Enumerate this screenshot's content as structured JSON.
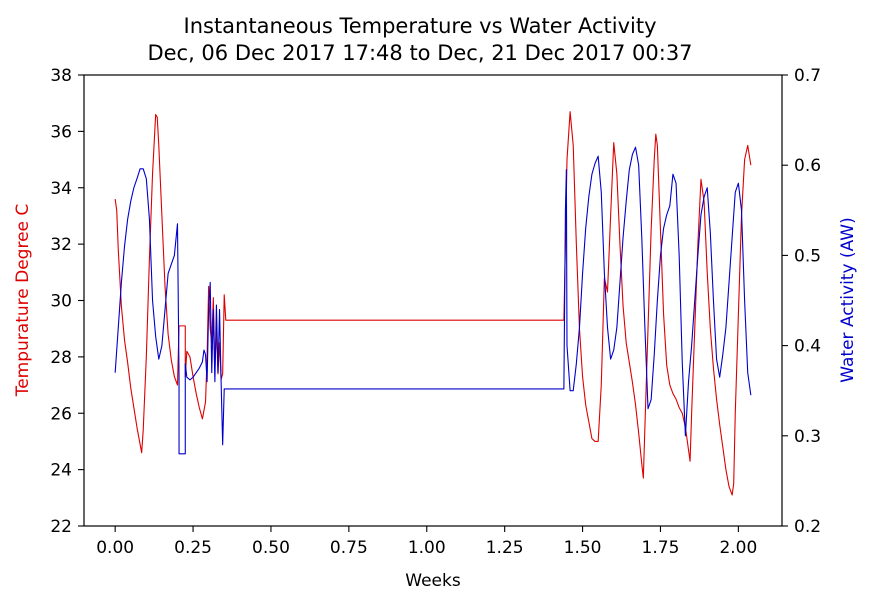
{
  "chart_data": {
    "type": "line",
    "title": "Instantaneous Temperature vs Water Activity",
    "subtitle": "Dec, 06 Dec 2017 17:48 to Dec, 21 Dec 2017 00:37",
    "xlabel": "Weeks",
    "xlim": [
      -0.1,
      2.14
    ],
    "xticks": [
      0.0,
      0.25,
      0.5,
      0.75,
      1.0,
      1.25,
      1.5,
      1.75,
      2.0
    ],
    "xtick_labels": [
      "0.00",
      "0.25",
      "0.50",
      "0.75",
      "1.00",
      "1.25",
      "1.50",
      "1.75",
      "2.00"
    ],
    "y_left": {
      "label": "Tempurature Degree C",
      "lim": [
        22,
        38
      ],
      "ticks": [
        22,
        24,
        26,
        28,
        30,
        32,
        34,
        36,
        38
      ],
      "tick_labels": [
        "22",
        "24",
        "26",
        "28",
        "30",
        "32",
        "34",
        "36",
        "38"
      ],
      "color": "#dd0000"
    },
    "y_right": {
      "label": "Water Activity (AW)",
      "lim": [
        0.2,
        0.7
      ],
      "ticks": [
        0.2,
        0.3,
        0.4,
        0.5,
        0.6,
        0.7
      ],
      "tick_labels": [
        "0.2",
        "0.3",
        "0.4",
        "0.5",
        "0.6",
        "0.7"
      ],
      "color": "#0000cc"
    },
    "grid": false,
    "series": [
      {
        "axis": "left",
        "color": "#dd0000",
        "points": [
          [
            0.0,
            33.6
          ],
          [
            0.005,
            33.2
          ],
          [
            0.01,
            31.8
          ],
          [
            0.02,
            29.8
          ],
          [
            0.03,
            28.6
          ],
          [
            0.04,
            27.8
          ],
          [
            0.05,
            26.9
          ],
          [
            0.06,
            26.2
          ],
          [
            0.07,
            25.5
          ],
          [
            0.08,
            24.9
          ],
          [
            0.085,
            24.6
          ],
          [
            0.09,
            25.4
          ],
          [
            0.1,
            28.0
          ],
          [
            0.11,
            31.5
          ],
          [
            0.12,
            34.5
          ],
          [
            0.13,
            36.6
          ],
          [
            0.135,
            36.5
          ],
          [
            0.14,
            35.5
          ],
          [
            0.15,
            33.0
          ],
          [
            0.16,
            30.5
          ],
          [
            0.17,
            28.8
          ],
          [
            0.18,
            27.9
          ],
          [
            0.19,
            27.3
          ],
          [
            0.2,
            27.0
          ],
          [
            0.205,
            29.1
          ],
          [
            0.225,
            29.1
          ],
          [
            0.225,
            27.3
          ],
          [
            0.23,
            28.2
          ],
          [
            0.24,
            28.0
          ],
          [
            0.25,
            27.3
          ],
          [
            0.26,
            26.7
          ],
          [
            0.27,
            26.2
          ],
          [
            0.28,
            25.8
          ],
          [
            0.29,
            26.4
          ],
          [
            0.295,
            28.0
          ],
          [
            0.3,
            30.5
          ],
          [
            0.305,
            29.0
          ],
          [
            0.31,
            28.5
          ],
          [
            0.315,
            30.1
          ],
          [
            0.32,
            27.6
          ],
          [
            0.325,
            29.0
          ],
          [
            0.33,
            27.4
          ],
          [
            0.335,
            28.5
          ],
          [
            0.34,
            27.2
          ],
          [
            0.345,
            27.4
          ],
          [
            0.35,
            30.2
          ],
          [
            0.355,
            29.3
          ],
          [
            1.44,
            29.3
          ],
          [
            1.445,
            32.0
          ],
          [
            1.45,
            35.0
          ],
          [
            1.46,
            36.7
          ],
          [
            1.47,
            35.5
          ],
          [
            1.48,
            32.0
          ],
          [
            1.49,
            29.0
          ],
          [
            1.5,
            27.3
          ],
          [
            1.51,
            26.3
          ],
          [
            1.52,
            25.7
          ],
          [
            1.53,
            25.1
          ],
          [
            1.54,
            25.0
          ],
          [
            1.55,
            25.0
          ],
          [
            1.56,
            27.0
          ],
          [
            1.57,
            30.8
          ],
          [
            1.58,
            30.3
          ],
          [
            1.59,
            33.0
          ],
          [
            1.6,
            35.6
          ],
          [
            1.61,
            34.5
          ],
          [
            1.62,
            32.0
          ],
          [
            1.63,
            29.8
          ],
          [
            1.64,
            28.5
          ],
          [
            1.65,
            27.8
          ],
          [
            1.66,
            27.1
          ],
          [
            1.67,
            26.3
          ],
          [
            1.68,
            25.3
          ],
          [
            1.69,
            24.2
          ],
          [
            1.695,
            23.7
          ],
          [
            1.7,
            25.5
          ],
          [
            1.71,
            29.0
          ],
          [
            1.72,
            32.5
          ],
          [
            1.73,
            35.0
          ],
          [
            1.735,
            35.9
          ],
          [
            1.74,
            35.5
          ],
          [
            1.75,
            32.5
          ],
          [
            1.76,
            29.5
          ],
          [
            1.77,
            27.7
          ],
          [
            1.78,
            27.0
          ],
          [
            1.79,
            26.7
          ],
          [
            1.8,
            26.5
          ],
          [
            1.81,
            26.2
          ],
          [
            1.82,
            26.0
          ],
          [
            1.83,
            25.5
          ],
          [
            1.84,
            24.7
          ],
          [
            1.845,
            24.3
          ],
          [
            1.85,
            26.0
          ],
          [
            1.86,
            29.0
          ],
          [
            1.87,
            32.0
          ],
          [
            1.88,
            34.3
          ],
          [
            1.89,
            33.5
          ],
          [
            1.9,
            31.0
          ],
          [
            1.91,
            29.0
          ],
          [
            1.92,
            27.6
          ],
          [
            1.93,
            26.5
          ],
          [
            1.94,
            25.6
          ],
          [
            1.95,
            24.8
          ],
          [
            1.96,
            24.0
          ],
          [
            1.97,
            23.4
          ],
          [
            1.98,
            23.1
          ],
          [
            1.985,
            23.5
          ],
          [
            1.99,
            26.0
          ],
          [
            2.0,
            29.5
          ],
          [
            2.01,
            33.0
          ],
          [
            2.02,
            35.0
          ],
          [
            2.03,
            35.5
          ],
          [
            2.04,
            34.8
          ]
        ]
      },
      {
        "axis": "right",
        "color": "#0000cc",
        "points": [
          [
            0.0,
            0.37
          ],
          [
            0.01,
            0.42
          ],
          [
            0.02,
            0.47
          ],
          [
            0.03,
            0.51
          ],
          [
            0.04,
            0.54
          ],
          [
            0.05,
            0.56
          ],
          [
            0.06,
            0.575
          ],
          [
            0.07,
            0.585
          ],
          [
            0.08,
            0.596
          ],
          [
            0.09,
            0.596
          ],
          [
            0.1,
            0.585
          ],
          [
            0.11,
            0.54
          ],
          [
            0.12,
            0.45
          ],
          [
            0.13,
            0.41
          ],
          [
            0.14,
            0.385
          ],
          [
            0.15,
            0.4
          ],
          [
            0.16,
            0.44
          ],
          [
            0.17,
            0.48
          ],
          [
            0.18,
            0.49
          ],
          [
            0.19,
            0.5
          ],
          [
            0.2,
            0.535
          ],
          [
            0.205,
            0.365
          ],
          [
            0.205,
            0.28
          ],
          [
            0.225,
            0.28
          ],
          [
            0.225,
            0.38
          ],
          [
            0.23,
            0.365
          ],
          [
            0.24,
            0.362
          ],
          [
            0.25,
            0.365
          ],
          [
            0.26,
            0.37
          ],
          [
            0.27,
            0.375
          ],
          [
            0.28,
            0.382
          ],
          [
            0.285,
            0.395
          ],
          [
            0.29,
            0.39
          ],
          [
            0.295,
            0.36
          ],
          [
            0.3,
            0.44
          ],
          [
            0.305,
            0.47
          ],
          [
            0.31,
            0.37
          ],
          [
            0.315,
            0.44
          ],
          [
            0.32,
            0.36
          ],
          [
            0.325,
            0.445
          ],
          [
            0.33,
            0.37
          ],
          [
            0.335,
            0.44
          ],
          [
            0.34,
            0.36
          ],
          [
            0.345,
            0.29
          ],
          [
            0.35,
            0.352
          ],
          [
            1.44,
            0.352
          ],
          [
            1.445,
            0.55
          ],
          [
            1.448,
            0.595
          ],
          [
            1.45,
            0.4
          ],
          [
            1.46,
            0.35
          ],
          [
            1.47,
            0.35
          ],
          [
            1.48,
            0.38
          ],
          [
            1.49,
            0.42
          ],
          [
            1.5,
            0.48
          ],
          [
            1.51,
            0.53
          ],
          [
            1.52,
            0.565
          ],
          [
            1.53,
            0.59
          ],
          [
            1.54,
            0.602
          ],
          [
            1.55,
            0.61
          ],
          [
            1.56,
            0.57
          ],
          [
            1.57,
            0.48
          ],
          [
            1.58,
            0.42
          ],
          [
            1.59,
            0.385
          ],
          [
            1.6,
            0.395
          ],
          [
            1.61,
            0.42
          ],
          [
            1.62,
            0.47
          ],
          [
            1.63,
            0.52
          ],
          [
            1.64,
            0.56
          ],
          [
            1.65,
            0.595
          ],
          [
            1.66,
            0.612
          ],
          [
            1.67,
            0.62
          ],
          [
            1.68,
            0.6
          ],
          [
            1.69,
            0.52
          ],
          [
            1.7,
            0.42
          ],
          [
            1.71,
            0.33
          ],
          [
            1.72,
            0.34
          ],
          [
            1.73,
            0.39
          ],
          [
            1.74,
            0.45
          ],
          [
            1.75,
            0.5
          ],
          [
            1.76,
            0.53
          ],
          [
            1.77,
            0.545
          ],
          [
            1.78,
            0.555
          ],
          [
            1.79,
            0.59
          ],
          [
            1.8,
            0.58
          ],
          [
            1.81,
            0.5
          ],
          [
            1.82,
            0.38
          ],
          [
            1.83,
            0.3
          ],
          [
            1.84,
            0.36
          ],
          [
            1.85,
            0.4
          ],
          [
            1.86,
            0.45
          ],
          [
            1.87,
            0.5
          ],
          [
            1.88,
            0.545
          ],
          [
            1.89,
            0.565
          ],
          [
            1.9,
            0.575
          ],
          [
            1.91,
            0.525
          ],
          [
            1.92,
            0.45
          ],
          [
            1.93,
            0.385
          ],
          [
            1.94,
            0.365
          ],
          [
            1.95,
            0.39
          ],
          [
            1.96,
            0.42
          ],
          [
            1.97,
            0.47
          ],
          [
            1.98,
            0.52
          ],
          [
            1.99,
            0.57
          ],
          [
            2.0,
            0.58
          ],
          [
            2.01,
            0.55
          ],
          [
            2.02,
            0.45
          ],
          [
            2.03,
            0.37
          ],
          [
            2.04,
            0.345
          ]
        ]
      }
    ]
  }
}
